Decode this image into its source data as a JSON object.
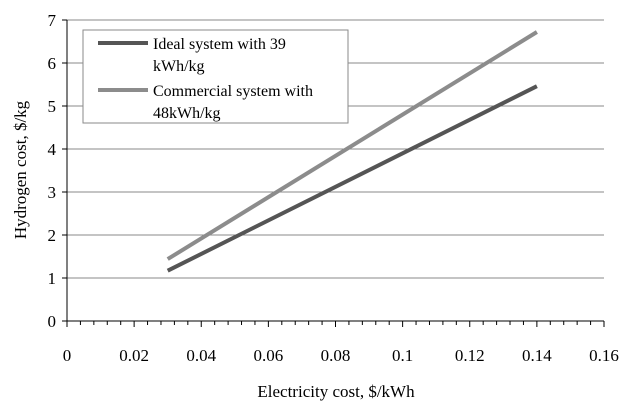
{
  "chart_data": {
    "type": "line",
    "xlabel": "Electricity cost, $/kWh",
    "ylabel": "Hydrogen cost, $/kg",
    "xlim": [
      0,
      0.16
    ],
    "ylim": [
      0,
      7
    ],
    "x_ticks": [
      "0",
      "0.02",
      "0.04",
      "0.06",
      "0.08",
      "0.1",
      "0.12",
      "0.14",
      "0.16"
    ],
    "y_ticks": [
      "0",
      "1",
      "2",
      "3",
      "4",
      "5",
      "6",
      "7"
    ],
    "grid": "horizontal",
    "legend_position": "top-left",
    "series": [
      {
        "name_lines": [
          "Ideal system with 39",
          "kWh/kg"
        ],
        "color": "#555555",
        "x": [
          0.03,
          0.14
        ],
        "y": [
          1.17,
          5.46
        ]
      },
      {
        "name_lines": [
          "Commercial system with",
          "48kWh/kg"
        ],
        "color": "#8c8c8c",
        "x": [
          0.03,
          0.14
        ],
        "y": [
          1.44,
          6.72
        ]
      }
    ]
  }
}
